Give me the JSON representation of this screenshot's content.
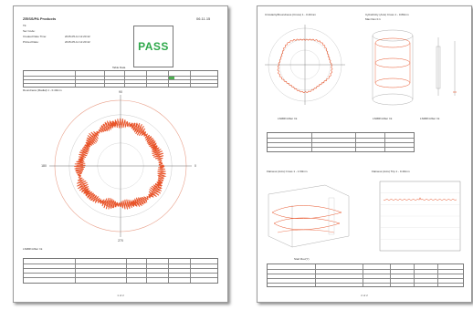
{
  "page1": {
    "company": "ZEISS/PA Products",
    "date": "06.11.15",
    "header_lines": [
      "Tit:",
      "Ser Code:",
      "Created Date Time:",
      "Printed Date:"
    ],
    "header_values": [
      "",
      "",
      "2015-05-11 12:20:42",
      "2015-05-11 12:20:42"
    ],
    "pass_label": "PASS",
    "table_caption": "Table Data",
    "plot_title": "Roundness (Radial) 1 - 0.40mm",
    "axis_top": "90",
    "axis_bottom": "270",
    "axis_left": "180",
    "axis_right": "0",
    "legend_label": "LSMRN-filter Int",
    "page_number": "1 of 2"
  },
  "page2": {
    "plot1_title": "Circularity/Roundness (Cross) 1 - 0.40mm",
    "plot2_title": "Cylindricity (Axis) Cross 1 - 0.80mm",
    "plot2_subtitle": "Max Dev 0.1",
    "legend1": "LSMRN-filter Int",
    "legend2": "LSMRN-filter Int",
    "legend3": "LSMRN-filter Int",
    "plot3_title": "Flatness (Axis) Cross 1 - 1.60mm",
    "plot4_title": "Flatness (Axis) Trip 1 - 0.40mm",
    "plot3_xlabel": "Start Rev(Y)",
    "page_number": "2 of 2"
  },
  "colors": {
    "trace": "#e8542a",
    "pass": "#2ea84a",
    "ring": "#e9a08a",
    "axis": "#6a6a6a"
  }
}
